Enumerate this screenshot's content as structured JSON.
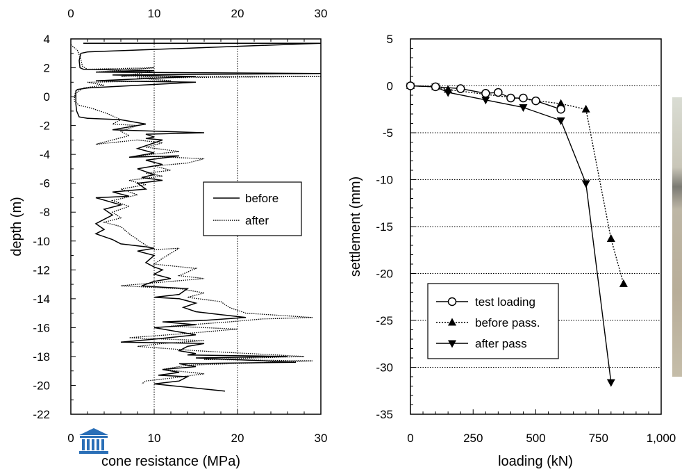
{
  "colors": {
    "ink": "#000000",
    "logo": "#2a6fb7",
    "grid": "#000000"
  },
  "chart_data": [
    {
      "type": "line",
      "title": "",
      "xlabel": "cone resistance (MPa)",
      "ylabel": "depth (m)",
      "xlim": [
        0,
        30
      ],
      "ylim": [
        -22,
        4
      ],
      "x_ticks": [
        "0",
        "10",
        "20",
        "30"
      ],
      "top_x_ticks": [
        "0",
        "10",
        "20",
        "30"
      ],
      "y_ticks": [
        "4",
        "2",
        "0",
        "-2",
        "-4",
        "-6",
        "-8",
        "-10",
        "-12",
        "-14",
        "-16",
        "-18",
        "-20",
        "-22"
      ],
      "grid": "vertical dotted at x=10 and x=20",
      "legend": {
        "placement": "center-right",
        "entries": [
          "before",
          "after"
        ]
      },
      "series": [
        {
          "name": "before",
          "style": "solid",
          "points": [
            [
              1.5,
              3.7
            ],
            [
              30,
              3.7
            ],
            [
              2,
              3.1
            ],
            [
              1.2,
              3.0
            ],
            [
              1.0,
              2.5
            ],
            [
              1.1,
              2.0
            ],
            [
              1.5,
              1.9
            ],
            [
              10,
              1.8
            ],
            [
              3,
              1.7
            ],
            [
              30,
              1.6
            ],
            [
              5,
              1.5
            ],
            [
              15,
              1.4
            ],
            [
              3,
              1.1
            ],
            [
              15,
              1.0
            ],
            [
              2,
              0.6
            ],
            [
              0.8,
              0.5
            ],
            [
              0.6,
              0.4
            ],
            [
              0.6,
              -0.5
            ],
            [
              0.7,
              -1.0
            ],
            [
              1.0,
              -1.4
            ],
            [
              2,
              -1.5
            ],
            [
              6,
              -1.6
            ],
            [
              9,
              -1.9
            ],
            [
              5,
              -2.3
            ],
            [
              16,
              -2.5
            ],
            [
              9,
              -2.6
            ],
            [
              10,
              -2.8
            ],
            [
              9,
              -2.9
            ],
            [
              11,
              -3.0
            ],
            [
              8,
              -3.6
            ],
            [
              10,
              -3.9
            ],
            [
              7,
              -4.2
            ],
            [
              13,
              -4.1
            ],
            [
              9,
              -4.4
            ],
            [
              11,
              -4.7
            ],
            [
              8,
              -5.0
            ],
            [
              10,
              -5.4
            ],
            [
              8.5,
              -5.6
            ],
            [
              11,
              -5.8
            ],
            [
              8,
              -6.0
            ],
            [
              9,
              -6.4
            ],
            [
              5,
              -6.6
            ],
            [
              7,
              -6.9
            ],
            [
              3,
              -7.0
            ],
            [
              6,
              -7.5
            ],
            [
              4,
              -7.8
            ],
            [
              5,
              -8.2
            ],
            [
              4,
              -8.5
            ],
            [
              3,
              -8.8
            ],
            [
              3.5,
              -9.0
            ],
            [
              4,
              -9.2
            ],
            [
              3,
              -9.5
            ],
            [
              5,
              -9.9
            ],
            [
              6,
              -10.2
            ],
            [
              9,
              -10.4
            ],
            [
              10,
              -10.5
            ],
            [
              8,
              -10.7
            ],
            [
              10,
              -11.0
            ],
            [
              9,
              -11.5
            ],
            [
              10,
              -11.8
            ],
            [
              11,
              -12.0
            ],
            [
              10,
              -12.3
            ],
            [
              12,
              -12.6
            ],
            [
              10,
              -12.8
            ],
            [
              8.5,
              -13.1
            ],
            [
              11,
              -13.2
            ],
            [
              14,
              -13.3
            ],
            [
              13,
              -13.7
            ],
            [
              10,
              -13.9
            ],
            [
              13,
              -14.0
            ],
            [
              15,
              -14.3
            ],
            [
              13.5,
              -14.6
            ],
            [
              15,
              -14.9
            ],
            [
              18,
              -15.1
            ],
            [
              21,
              -15.3
            ],
            [
              16,
              -15.5
            ],
            [
              11,
              -15.6
            ],
            [
              15,
              -15.8
            ],
            [
              10,
              -16.0
            ],
            [
              15,
              -16.5
            ],
            [
              10,
              -16.8
            ],
            [
              6,
              -17.0
            ],
            [
              16,
              -17.1
            ],
            [
              14,
              -17.3
            ],
            [
              13,
              -17.6
            ],
            [
              15,
              -17.8
            ],
            [
              14,
              -17.9
            ],
            [
              26,
              -18.0
            ],
            [
              15,
              -18.1
            ],
            [
              27,
              -18.4
            ],
            [
              13,
              -18.5
            ],
            [
              15,
              -18.7
            ],
            [
              11,
              -18.9
            ],
            [
              13,
              -19.1
            ],
            [
              10.5,
              -19.3
            ],
            [
              14,
              -19.4
            ],
            [
              13,
              -19.7
            ],
            [
              10,
              -19.9
            ],
            [
              18.5,
              -20.4
            ]
          ]
        },
        {
          "name": "after",
          "style": "dotted",
          "points": [
            [
              0,
              3.6
            ],
            [
              0.8,
              3.2
            ],
            [
              1.2,
              2.6
            ],
            [
              1.4,
              2.1
            ],
            [
              2,
              1.9
            ],
            [
              10,
              2.0
            ],
            [
              3,
              1.7
            ],
            [
              10,
              1.8
            ],
            [
              6,
              1.4
            ],
            [
              30,
              1.4
            ],
            [
              8,
              1.3
            ],
            [
              12,
              1.1
            ],
            [
              2,
              1.0
            ],
            [
              4,
              0.8
            ],
            [
              1.5,
              0.6
            ],
            [
              0.5,
              0.2
            ],
            [
              0.4,
              -0.3
            ],
            [
              1.0,
              -0.6
            ],
            [
              2.5,
              -0.8
            ],
            [
              4.5,
              -1.2
            ],
            [
              6,
              -1.6
            ],
            [
              5,
              -1.9
            ],
            [
              8,
              -2.0
            ],
            [
              6,
              -2.4
            ],
            [
              7,
              -2.7
            ],
            [
              3,
              -3.3
            ],
            [
              8,
              -3.0
            ],
            [
              11,
              -3.2
            ],
            [
              9,
              -3.5
            ],
            [
              13,
              -3.8
            ],
            [
              8,
              -4.1
            ],
            [
              16,
              -4.3
            ],
            [
              14,
              -4.6
            ],
            [
              10,
              -4.8
            ],
            [
              12,
              -5.1
            ],
            [
              9,
              -5.3
            ],
            [
              11,
              -5.5
            ],
            [
              7,
              -5.8
            ],
            [
              9,
              -6.1
            ],
            [
              6,
              -6.4
            ],
            [
              8,
              -6.8
            ],
            [
              5,
              -7.2
            ],
            [
              7,
              -7.6
            ],
            [
              5,
              -8.0
            ],
            [
              6,
              -8.4
            ],
            [
              4,
              -8.7
            ],
            [
              6,
              -9.0
            ],
            [
              7,
              -9.5
            ],
            [
              8,
              -9.9
            ],
            [
              9,
              -10.3
            ],
            [
              10,
              -10.6
            ],
            [
              13,
              -10.5
            ],
            [
              11,
              -11.2
            ],
            [
              10,
              -11.6
            ],
            [
              15,
              -11.9
            ],
            [
              13,
              -12.4
            ],
            [
              16,
              -12.6
            ],
            [
              12,
              -12.8
            ],
            [
              6,
              -13.1
            ],
            [
              13,
              -13.3
            ],
            [
              16,
              -13.6
            ],
            [
              14,
              -13.9
            ],
            [
              18,
              -14.2
            ],
            [
              19,
              -14.6
            ],
            [
              21,
              -15.0
            ],
            [
              29,
              -15.3
            ],
            [
              23,
              -15.4
            ],
            [
              19,
              -15.6
            ],
            [
              12,
              -15.9
            ],
            [
              20,
              -16.1
            ],
            [
              14,
              -16.4
            ],
            [
              7,
              -16.7
            ],
            [
              16,
              -16.9
            ],
            [
              11,
              -17.1
            ],
            [
              8,
              -17.3
            ],
            [
              15,
              -17.6
            ],
            [
              28,
              -18.0
            ],
            [
              16,
              -18.2
            ],
            [
              29,
              -18.3
            ],
            [
              14,
              -18.6
            ],
            [
              11,
              -18.9
            ],
            [
              16,
              -19.2
            ],
            [
              12,
              -19.5
            ],
            [
              9,
              -19.7
            ],
            [
              8.5,
              -19.9
            ]
          ]
        }
      ]
    },
    {
      "type": "line",
      "title": "",
      "xlabel": "loading (kN)",
      "ylabel": "settlement (mm)",
      "xlim": [
        0,
        1000
      ],
      "ylim": [
        -35,
        5
      ],
      "x_ticks": [
        "0",
        "250",
        "500",
        "750",
        "1,000"
      ],
      "y_ticks": [
        "5",
        "0",
        "-5",
        "-10",
        "-15",
        "-20",
        "-25",
        "-30",
        "-35"
      ],
      "grid": "horizontal dotted at 0, -5, -10, -15, -20, -25, -30",
      "legend": {
        "placement": "bottom-left",
        "entries": [
          "test loading",
          "before pass.",
          "after pass"
        ]
      },
      "series": [
        {
          "name": "test loading",
          "marker": "open-circle",
          "style": "solid",
          "x": [
            0,
            100,
            200,
            300,
            350,
            400,
            450,
            500,
            600
          ],
          "y": [
            0,
            -0.1,
            -0.3,
            -0.8,
            -0.7,
            -1.3,
            -1.3,
            -1.6,
            -2.5
          ]
        },
        {
          "name": "before pass.",
          "marker": "up-triangle",
          "style": "dotted",
          "x": [
            0,
            100,
            150,
            600,
            700,
            800,
            850
          ],
          "y": [
            0,
            -0.1,
            -0.4,
            -1.9,
            -2.5,
            -16.3,
            -21.1
          ]
        },
        {
          "name": "after pass",
          "marker": "down-triangle",
          "style": "solid",
          "x": [
            0,
            100,
            150,
            300,
            450,
            600,
            700,
            800
          ],
          "y": [
            0,
            -0.1,
            -0.7,
            -1.5,
            -2.3,
            -3.7,
            -10.4,
            -31.6
          ]
        }
      ]
    }
  ]
}
